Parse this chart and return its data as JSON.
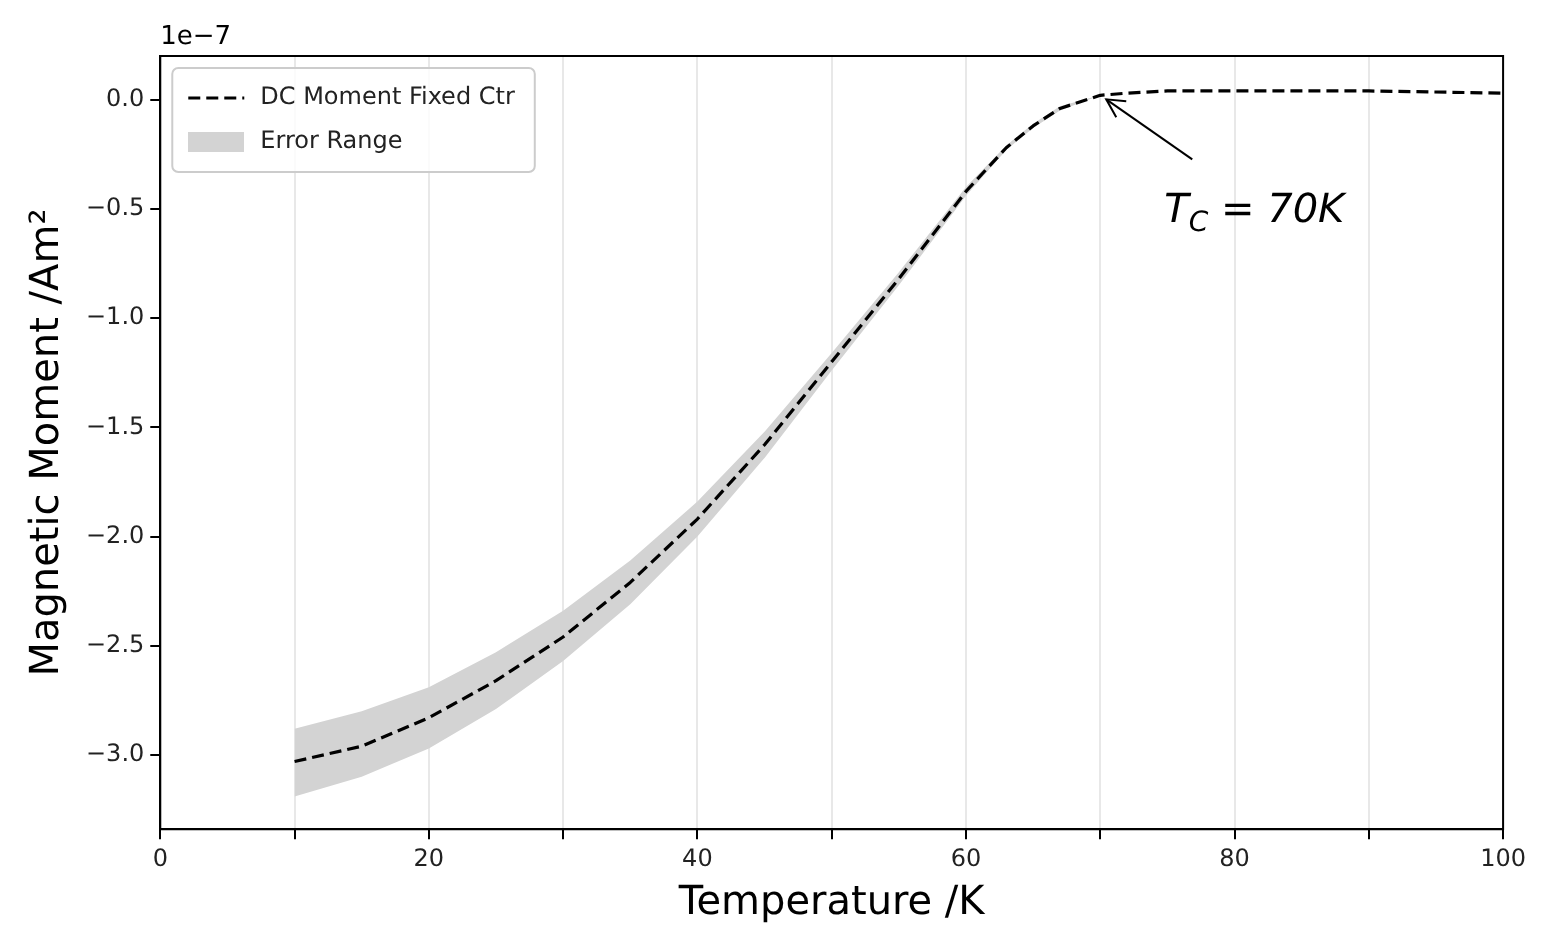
{
  "chart_data": {
    "type": "line",
    "xlabel": "Temperature /K",
    "ylabel": "Magnetic Moment /Am²",
    "x": [
      10,
      15,
      20,
      25,
      30,
      35,
      40,
      45,
      50,
      55,
      60,
      63,
      65,
      67,
      70,
      72,
      75,
      80,
      90,
      100
    ],
    "series": [
      {
        "name": "DC Moment Fixed Ctr",
        "color": "#000000",
        "line_style": "dashed",
        "values": [
          -3.03,
          -2.96,
          -2.83,
          -2.66,
          -2.46,
          -2.21,
          -1.92,
          -1.58,
          -1.2,
          -0.82,
          -0.42,
          -0.22,
          -0.12,
          -0.04,
          0.02,
          0.03,
          0.04,
          0.04,
          0.04,
          0.03
        ],
        "lower": [
          -3.19,
          -3.1,
          -2.97,
          -2.79,
          -2.57,
          -2.31,
          -2.0,
          -1.64,
          -1.24,
          -0.85,
          -0.44,
          -0.23,
          -0.13,
          -0.05,
          0.02,
          0.03,
          0.04,
          0.04,
          0.04,
          0.03
        ],
        "upper": [
          -2.88,
          -2.8,
          -2.69,
          -2.53,
          -2.34,
          -2.11,
          -1.84,
          -1.52,
          -1.16,
          -0.79,
          -0.4,
          -0.21,
          -0.11,
          -0.03,
          0.02,
          0.03,
          0.04,
          0.04,
          0.04,
          0.03
        ]
      }
    ],
    "xlim": [
      0,
      100
    ],
    "xticks": [
      0,
      {
        "value": 10,
        "label": null
      },
      20,
      {
        "value": 30,
        "label": null
      },
      40,
      {
        "value": 50,
        "label": null
      },
      60,
      {
        "value": 70,
        "label": null
      },
      80,
      {
        "value": 90,
        "label": null
      },
      100
    ],
    "ylim": [
      -3.34,
      0.2
    ],
    "yticks": [
      {
        "value": -3,
        "label": "−3.0"
      },
      {
        "value": -2.5,
        "label": "−2.5"
      },
      {
        "value": -2,
        "label": "−2.0"
      },
      {
        "value": -1.5,
        "label": "−1.5"
      },
      {
        "value": -1,
        "label": "−1.0"
      },
      {
        "value": -0.5,
        "label": "−0.5"
      },
      {
        "value": 0,
        "label": "0.0"
      }
    ],
    "grid": "x",
    "legend": "top left",
    "marker": "none",
    "annotations": [
      "1e−7",
      "Error Range",
      {
        "text": "T$_{C}$ = 70K",
        "x": 70,
        "y": 0.02
      }
    ]
  }
}
